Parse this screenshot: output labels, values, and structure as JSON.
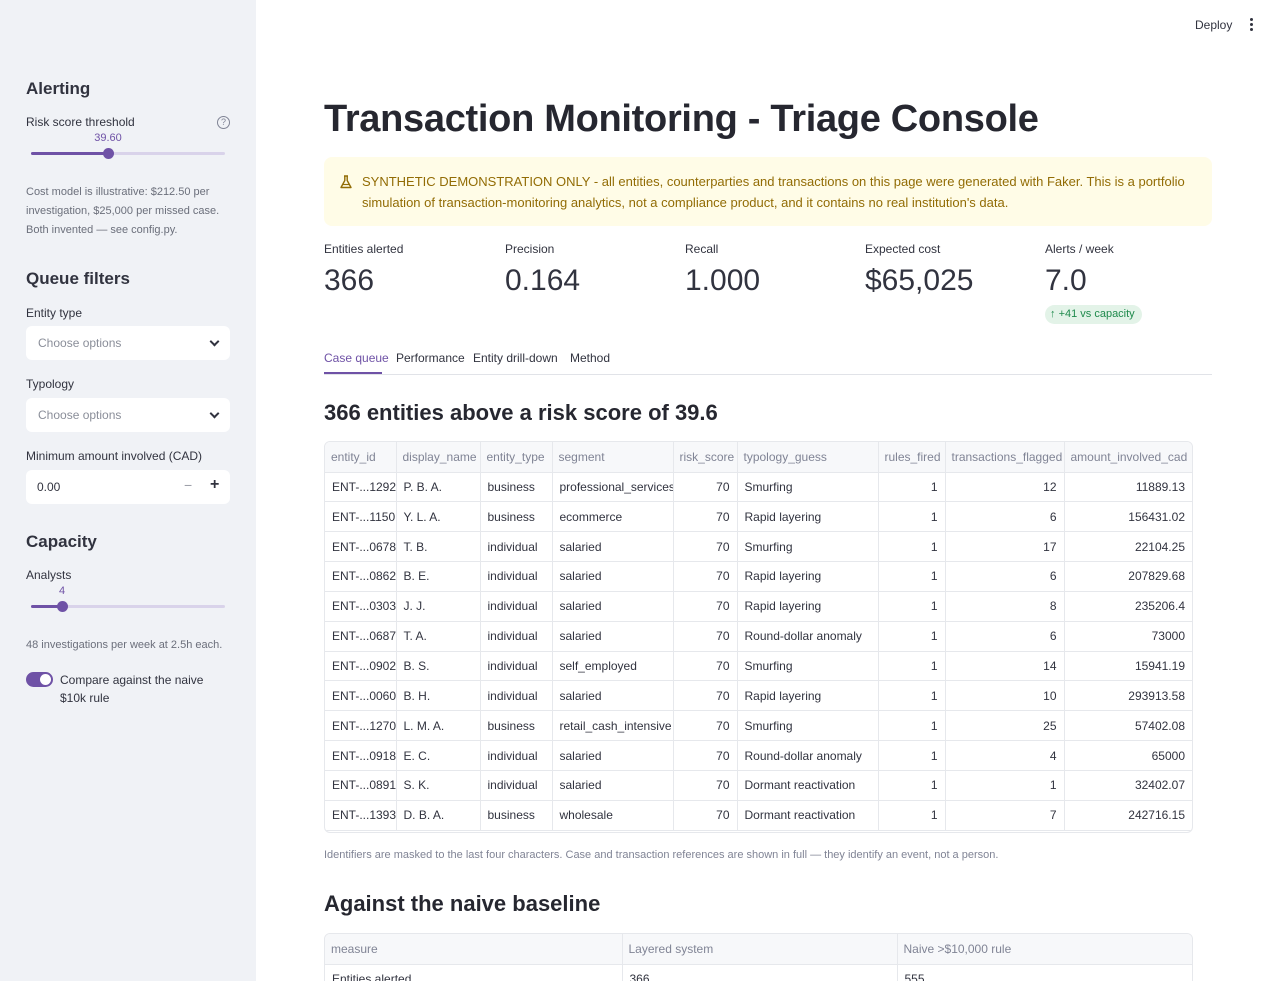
{
  "sidebar": {
    "alerting_heading": "Alerting",
    "threshold_label": "Risk score threshold",
    "threshold_value": "39.60",
    "threshold_fraction": 0.396,
    "cost_note": "Cost model is illustrative: $212.50 per investigation, $25,000 per missed case. Both invented — see config.py.",
    "queue_heading": "Queue filters",
    "entity_type_label": "Entity type",
    "entity_type_placeholder": "Choose options",
    "typology_label": "Typology",
    "typology_placeholder": "Choose options",
    "min_amount_label": "Minimum amount involved (CAD)",
    "min_amount_value": "0.00",
    "minus_glyph": "−",
    "plus_glyph": "+",
    "capacity_heading": "Capacity",
    "analysts_label": "Analysts",
    "analysts_value": "4",
    "analysts_fraction": 0.158,
    "capacity_note": "48 investigations per week at 2.5h each.",
    "compare_label": "Compare against the naive $10k rule",
    "compare_on": true
  },
  "header": {
    "deploy_label": "Deploy"
  },
  "main": {
    "title": "Transaction Monitoring - Triage Console",
    "warning": "SYNTHETIC DEMONSTRATION ONLY - all entities, counterparties and transactions on this page were generated with Faker. This is a portfolio simulation of transaction-monitoring analytics, not a compliance product, and it contains no real institution's data.",
    "metrics": [
      {
        "label": "Entities alerted",
        "value": "366"
      },
      {
        "label": "Precision",
        "value": "0.164"
      },
      {
        "label": "Recall",
        "value": "1.000"
      },
      {
        "label": "Expected cost",
        "value": "$65,025"
      },
      {
        "label": "Alerts / week",
        "value": "7.0"
      }
    ],
    "alerts_delta": "+41 vs capacity",
    "tabs": [
      "Case queue",
      "Performance",
      "Entity drill-down",
      "Method"
    ],
    "queue_heading": "366 entities above a risk score of 39.6",
    "queue_table": {
      "columns": [
        "entity_id",
        "display_name",
        "entity_type",
        "segment",
        "risk_score",
        "typology_guess",
        "rules_fired",
        "transactions_flagged",
        "amount_involved_cad"
      ],
      "rows": [
        [
          "ENT-...1292",
          "P. B. A.",
          "business",
          "professional_services",
          "70",
          "Smurfing",
          "1",
          "12",
          "11889.13"
        ],
        [
          "ENT-...1150",
          "Y. L. A.",
          "business",
          "ecommerce",
          "70",
          "Rapid layering",
          "1",
          "6",
          "156431.02"
        ],
        [
          "ENT-...0678",
          "T. B.",
          "individual",
          "salaried",
          "70",
          "Smurfing",
          "1",
          "17",
          "22104.25"
        ],
        [
          "ENT-...0862",
          "B. E.",
          "individual",
          "salaried",
          "70",
          "Rapid layering",
          "1",
          "6",
          "207829.68"
        ],
        [
          "ENT-...0303",
          "J. J.",
          "individual",
          "salaried",
          "70",
          "Rapid layering",
          "1",
          "8",
          "235206.4"
        ],
        [
          "ENT-...0687",
          "T. A.",
          "individual",
          "salaried",
          "70",
          "Round-dollar anomaly",
          "1",
          "6",
          "73000"
        ],
        [
          "ENT-...0902",
          "B. S.",
          "individual",
          "self_employed",
          "70",
          "Smurfing",
          "1",
          "14",
          "15941.19"
        ],
        [
          "ENT-...0060",
          "B. H.",
          "individual",
          "salaried",
          "70",
          "Rapid layering",
          "1",
          "10",
          "293913.58"
        ],
        [
          "ENT-...1270",
          "L. M. A.",
          "business",
          "retail_cash_intensive",
          "70",
          "Smurfing",
          "1",
          "25",
          "57402.08"
        ],
        [
          "ENT-...0918",
          "E. C.",
          "individual",
          "salaried",
          "70",
          "Round-dollar anomaly",
          "1",
          "4",
          "65000"
        ],
        [
          "ENT-...0891",
          "S. K.",
          "individual",
          "salaried",
          "70",
          "Dormant reactivation",
          "1",
          "1",
          "32402.07"
        ],
        [
          "ENT-...1393",
          "D. B. A.",
          "business",
          "wholesale",
          "70",
          "Dormant reactivation",
          "1",
          "7",
          "242716.15"
        ]
      ]
    },
    "caption": "Identifiers are masked to the last four characters. Case and transaction references are shown in full — they identify an event, not a person.",
    "baseline_heading": "Against the naive baseline",
    "baseline_table": {
      "columns": [
        "measure",
        "Layered system",
        "Naive >$10,000 rule"
      ],
      "rows": [
        [
          "Entities alerted",
          "366",
          "555"
        ]
      ]
    }
  },
  "colors": {
    "accent": "#6f52a6",
    "warning_bg": "#fffce7",
    "warning_text": "#926c05",
    "delta_bg": "#e3f3e8",
    "delta_text": "#1f8a4c"
  }
}
